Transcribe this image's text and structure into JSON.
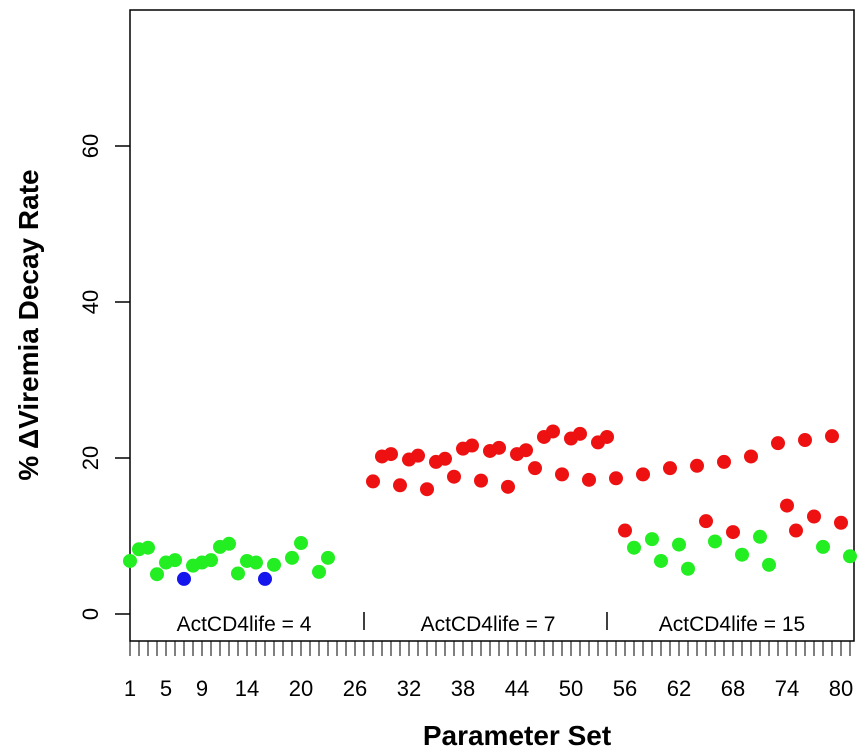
{
  "chart_data": {
    "type": "scatter",
    "xlabel": "Parameter Set",
    "ylabel": "% ΔViremia Decay Rate",
    "xlim": [
      1,
      80
    ],
    "ylim": [
      0,
      75
    ],
    "x_tick_labels": [
      "1",
      "5",
      "9",
      "14",
      "20",
      "26",
      "32",
      "38",
      "44",
      "50",
      "56",
      "62",
      "68",
      "74",
      "80"
    ],
    "y_tick_labels": [
      "0",
      "20",
      "40",
      "60"
    ],
    "grid": false,
    "annotations": [
      "ActCD4life = 4",
      "ActCD4life = 7",
      "ActCD4life = 15"
    ],
    "colors": {
      "green": "#22ee22",
      "blue": "#1515ee",
      "red": "#ee1111"
    },
    "points": [
      {
        "x": 1,
        "y": 6.8,
        "color": "green"
      },
      {
        "x": 2,
        "y": 8.3,
        "color": "green"
      },
      {
        "x": 3,
        "y": 8.5,
        "color": "green"
      },
      {
        "x": 4,
        "y": 5.1,
        "color": "green"
      },
      {
        "x": 5,
        "y": 6.6,
        "color": "green"
      },
      {
        "x": 6,
        "y": 6.9,
        "color": "green"
      },
      {
        "x": 7,
        "y": 4.5,
        "color": "blue"
      },
      {
        "x": 8,
        "y": 6.2,
        "color": "green"
      },
      {
        "x": 9,
        "y": 6.6,
        "color": "green"
      },
      {
        "x": 10,
        "y": 6.9,
        "color": "green"
      },
      {
        "x": 11,
        "y": 8.6,
        "color": "green"
      },
      {
        "x": 12,
        "y": 9.0,
        "color": "green"
      },
      {
        "x": 13,
        "y": 5.2,
        "color": "green"
      },
      {
        "x": 14,
        "y": 6.8,
        "color": "green"
      },
      {
        "x": 15,
        "y": 6.6,
        "color": "green"
      },
      {
        "x": 16,
        "y": 4.5,
        "color": "blue"
      },
      {
        "x": 17,
        "y": 6.3,
        "color": "green"
      },
      {
        "x": 19,
        "y": 7.2,
        "color": "green"
      },
      {
        "x": 20,
        "y": 9.1,
        "color": "green"
      },
      {
        "x": 22,
        "y": 5.4,
        "color": "green"
      },
      {
        "x": 23,
        "y": 7.2,
        "color": "green"
      },
      {
        "x": 28,
        "y": 17.0,
        "color": "red"
      },
      {
        "x": 29,
        "y": 20.2,
        "color": "red"
      },
      {
        "x": 30,
        "y": 20.5,
        "color": "red"
      },
      {
        "x": 31,
        "y": 16.5,
        "color": "red"
      },
      {
        "x": 32,
        "y": 19.8,
        "color": "red"
      },
      {
        "x": 33,
        "y": 20.3,
        "color": "red"
      },
      {
        "x": 34,
        "y": 16.0,
        "color": "red"
      },
      {
        "x": 35,
        "y": 19.5,
        "color": "red"
      },
      {
        "x": 36,
        "y": 19.9,
        "color": "red"
      },
      {
        "x": 37,
        "y": 17.6,
        "color": "red"
      },
      {
        "x": 38,
        "y": 21.2,
        "color": "red"
      },
      {
        "x": 39,
        "y": 21.6,
        "color": "red"
      },
      {
        "x": 40,
        "y": 17.1,
        "color": "red"
      },
      {
        "x": 41,
        "y": 20.9,
        "color": "red"
      },
      {
        "x": 42,
        "y": 21.3,
        "color": "red"
      },
      {
        "x": 43,
        "y": 16.3,
        "color": "red"
      },
      {
        "x": 44,
        "y": 20.5,
        "color": "red"
      },
      {
        "x": 45,
        "y": 21.0,
        "color": "red"
      },
      {
        "x": 46,
        "y": 18.7,
        "color": "red"
      },
      {
        "x": 47,
        "y": 22.7,
        "color": "red"
      },
      {
        "x": 48,
        "y": 23.4,
        "color": "red"
      },
      {
        "x": 49,
        "y": 17.9,
        "color": "red"
      },
      {
        "x": 50,
        "y": 22.5,
        "color": "red"
      },
      {
        "x": 51,
        "y": 23.1,
        "color": "red"
      },
      {
        "x": 52,
        "y": 17.2,
        "color": "red"
      },
      {
        "x": 53,
        "y": 22.0,
        "color": "red"
      },
      {
        "x": 54,
        "y": 22.7,
        "color": "red"
      },
      {
        "x": 55,
        "y": 17.4,
        "color": "red"
      },
      {
        "x": 56,
        "y": 10.7,
        "color": "red"
      },
      {
        "x": 57,
        "y": 8.5,
        "color": "green"
      },
      {
        "x": 58,
        "y": 17.9,
        "color": "red"
      },
      {
        "x": 59,
        "y": 9.6,
        "color": "green"
      },
      {
        "x": 60,
        "y": 6.8,
        "color": "green"
      },
      {
        "x": 61,
        "y": 18.7,
        "color": "red"
      },
      {
        "x": 62,
        "y": 8.9,
        "color": "green"
      },
      {
        "x": 63,
        "y": 5.8,
        "color": "green"
      },
      {
        "x": 64,
        "y": 19.0,
        "color": "red"
      },
      {
        "x": 65,
        "y": 11.9,
        "color": "red"
      },
      {
        "x": 66,
        "y": 9.3,
        "color": "green"
      },
      {
        "x": 67,
        "y": 19.5,
        "color": "red"
      },
      {
        "x": 68,
        "y": 10.5,
        "color": "red"
      },
      {
        "x": 69,
        "y": 7.6,
        "color": "green"
      },
      {
        "x": 70,
        "y": 20.2,
        "color": "red"
      },
      {
        "x": 71,
        "y": 9.9,
        "color": "green"
      },
      {
        "x": 72,
        "y": 6.3,
        "color": "green"
      },
      {
        "x": 73,
        "y": 21.9,
        "color": "red"
      },
      {
        "x": 74,
        "y": 13.9,
        "color": "red"
      },
      {
        "x": 75,
        "y": 10.7,
        "color": "red"
      },
      {
        "x": 76,
        "y": 22.3,
        "color": "red"
      },
      {
        "x": 77,
        "y": 12.5,
        "color": "red"
      },
      {
        "x": 78,
        "y": 8.6,
        "color": "green"
      },
      {
        "x": 79,
        "y": 22.8,
        "color": "red"
      },
      {
        "x": 80,
        "y": 11.7,
        "color": "red"
      },
      {
        "x": 81,
        "y": 7.4,
        "color": "green"
      }
    ]
  }
}
